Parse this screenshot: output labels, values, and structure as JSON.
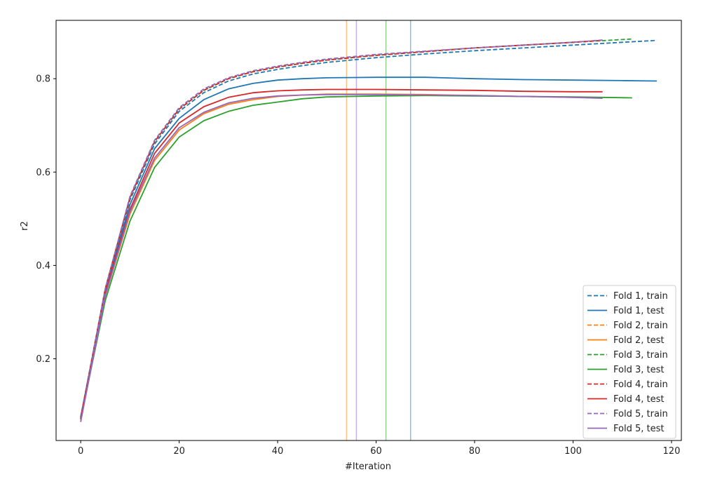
{
  "chart_data": {
    "type": "line",
    "title": "",
    "xlabel": "#Iteration",
    "ylabel": "r2",
    "xlim": [
      -5,
      122
    ],
    "ylim": [
      0.025,
      0.925
    ],
    "xticks": [
      0,
      20,
      40,
      60,
      80,
      100,
      120
    ],
    "yticks": [
      0.2,
      0.4,
      0.6,
      0.8
    ],
    "grid": false,
    "legend_position": "lower-right",
    "colors": {
      "fold1": "#1f77b4",
      "fold2": "#ff7f0e",
      "fold3": "#2ca02c",
      "fold4": "#d62728",
      "fold5": "#9467bd"
    },
    "vlines": [
      {
        "x": 54,
        "color": "#ff7f0e"
      },
      {
        "x": 56,
        "color": "#9467bd"
      },
      {
        "x": 62,
        "color": "#2ca02c"
      },
      {
        "x": 67,
        "color": "#1f77b4"
      }
    ],
    "series": [
      {
        "name": "Fold 1, train",
        "color": "#1f77b4",
        "dash": true,
        "x": [
          0,
          5,
          10,
          15,
          20,
          25,
          30,
          35,
          40,
          45,
          50,
          60,
          70,
          80,
          90,
          100,
          110,
          117
        ],
        "y": [
          0.075,
          0.35,
          0.54,
          0.66,
          0.73,
          0.77,
          0.795,
          0.81,
          0.82,
          0.828,
          0.835,
          0.845,
          0.853,
          0.86,
          0.866,
          0.872,
          0.878,
          0.882
        ]
      },
      {
        "name": "Fold 1, test",
        "color": "#1f77b4",
        "dash": false,
        "x": [
          0,
          5,
          10,
          15,
          20,
          25,
          30,
          35,
          40,
          45,
          50,
          60,
          70,
          80,
          90,
          100,
          110,
          117
        ],
        "y": [
          0.075,
          0.345,
          0.53,
          0.65,
          0.715,
          0.755,
          0.778,
          0.79,
          0.797,
          0.8,
          0.802,
          0.803,
          0.803,
          0.8,
          0.798,
          0.797,
          0.796,
          0.795
        ]
      },
      {
        "name": "Fold 2, train",
        "color": "#ff7f0e",
        "dash": true,
        "x": [
          0,
          5,
          10,
          15,
          20,
          25,
          30,
          35,
          40,
          45,
          50,
          60,
          70,
          80,
          90,
          100,
          106
        ],
        "y": [
          0.072,
          0.35,
          0.545,
          0.665,
          0.735,
          0.775,
          0.8,
          0.815,
          0.825,
          0.833,
          0.84,
          0.85,
          0.858,
          0.866,
          0.872,
          0.878,
          0.882
        ]
      },
      {
        "name": "Fold 2, test",
        "color": "#ff7f0e",
        "dash": false,
        "x": [
          0,
          5,
          10,
          15,
          20,
          25,
          30,
          35,
          40,
          45,
          50,
          60,
          70,
          80,
          90,
          100,
          106
        ],
        "y": [
          0.072,
          0.335,
          0.51,
          0.625,
          0.69,
          0.725,
          0.745,
          0.755,
          0.762,
          0.765,
          0.767,
          0.767,
          0.766,
          0.764,
          0.762,
          0.76,
          0.759
        ]
      },
      {
        "name": "Fold 3, train",
        "color": "#2ca02c",
        "dash": true,
        "x": [
          0,
          5,
          10,
          15,
          20,
          25,
          30,
          35,
          40,
          45,
          50,
          60,
          70,
          80,
          90,
          100,
          112
        ],
        "y": [
          0.07,
          0.35,
          0.545,
          0.665,
          0.735,
          0.775,
          0.8,
          0.815,
          0.825,
          0.833,
          0.84,
          0.85,
          0.858,
          0.866,
          0.872,
          0.878,
          0.885
        ]
      },
      {
        "name": "Fold 3, test",
        "color": "#2ca02c",
        "dash": false,
        "x": [
          0,
          5,
          10,
          15,
          20,
          25,
          30,
          35,
          40,
          45,
          50,
          60,
          70,
          80,
          90,
          100,
          112
        ],
        "y": [
          0.07,
          0.325,
          0.495,
          0.61,
          0.675,
          0.71,
          0.73,
          0.743,
          0.75,
          0.757,
          0.761,
          0.763,
          0.764,
          0.763,
          0.762,
          0.761,
          0.759
        ]
      },
      {
        "name": "Fold 4, train",
        "color": "#d62728",
        "dash": true,
        "x": [
          0,
          5,
          10,
          15,
          20,
          25,
          30,
          35,
          40,
          45,
          50,
          60,
          70,
          80,
          90,
          100,
          106
        ],
        "y": [
          0.072,
          0.35,
          0.545,
          0.665,
          0.735,
          0.775,
          0.8,
          0.815,
          0.825,
          0.833,
          0.84,
          0.85,
          0.858,
          0.866,
          0.872,
          0.878,
          0.882
        ]
      },
      {
        "name": "Fold 4, test",
        "color": "#d62728",
        "dash": false,
        "x": [
          0,
          5,
          10,
          15,
          20,
          25,
          30,
          35,
          40,
          45,
          50,
          60,
          70,
          80,
          90,
          100,
          106
        ],
        "y": [
          0.072,
          0.34,
          0.52,
          0.64,
          0.705,
          0.74,
          0.76,
          0.77,
          0.774,
          0.776,
          0.777,
          0.777,
          0.776,
          0.775,
          0.773,
          0.772,
          0.772
        ]
      },
      {
        "name": "Fold 5, train",
        "color": "#9467bd",
        "dash": true,
        "x": [
          0,
          5,
          10,
          15,
          20,
          25,
          30,
          35,
          40,
          45,
          50,
          60,
          70,
          80,
          90,
          100,
          106
        ],
        "y": [
          0.065,
          0.35,
          0.548,
          0.668,
          0.738,
          0.778,
          0.802,
          0.817,
          0.827,
          0.835,
          0.842,
          0.852,
          0.859,
          0.866,
          0.872,
          0.878,
          0.883
        ]
      },
      {
        "name": "Fold 5, test",
        "color": "#9467bd",
        "dash": false,
        "x": [
          0,
          5,
          10,
          15,
          20,
          25,
          30,
          35,
          40,
          45,
          50,
          60,
          70,
          80,
          90,
          100,
          106
        ],
        "y": [
          0.065,
          0.335,
          0.515,
          0.63,
          0.695,
          0.728,
          0.748,
          0.758,
          0.763,
          0.765,
          0.766,
          0.766,
          0.765,
          0.764,
          0.762,
          0.76,
          0.758
        ]
      }
    ]
  }
}
